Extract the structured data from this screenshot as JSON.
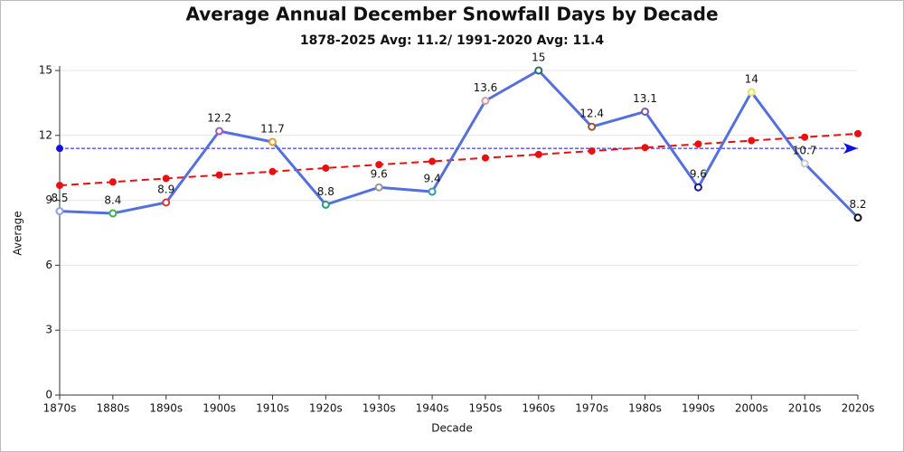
{
  "chart_data": {
    "type": "line",
    "title": "Average Annual December Snowfall Days by Decade",
    "subtitle": "1878-2025 Avg: 11.2/ 1991-2020 Avg: 11.4",
    "x_label": "Decade",
    "y_label": "Average",
    "categories": [
      "1870s",
      "1880s",
      "1890s",
      "1900s",
      "1910s",
      "1920s",
      "1930s",
      "1940s",
      "1950s",
      "1960s",
      "1970s",
      "1980s",
      "1990s",
      "2000s",
      "2010s",
      "2020s"
    ],
    "series": [
      {
        "values": [
          8.5,
          8.4,
          8.9,
          12.2,
          11.7,
          8.8,
          9.6,
          9.4,
          13.6,
          15,
          12.4,
          13.1,
          9.6,
          14,
          10.7,
          8.2
        ],
        "color": "#5470dd",
        "point_colors": [
          "#8ca0e8",
          "#3fb14a",
          "#d23a3a",
          "#a05ac8",
          "#e89a2a",
          "#2a9a8a",
          "#999999",
          "#3a9aa8",
          "#d99aa8",
          "#2a6a6a",
          "#a0522d",
          "#7a5aa8",
          "#1a1a9a",
          "#e8e060",
          "#c8c8d0",
          "#111111"
        ]
      },
      {
        "values": [
          9.69,
          9.85,
          10.01,
          10.17,
          10.33,
          10.49,
          10.65,
          10.8,
          10.96,
          11.12,
          11.28,
          11.44,
          11.6,
          11.76,
          11.92,
          12.08
        ],
        "color": "#e81010",
        "dashed": true
      }
    ],
    "reference_line": {
      "value": 11.4,
      "color": "#1010e0"
    },
    "ylim": [
      0,
      15
    ],
    "yticks": [
      0,
      3,
      6,
      9,
      12,
      15
    ],
    "grid": true
  }
}
